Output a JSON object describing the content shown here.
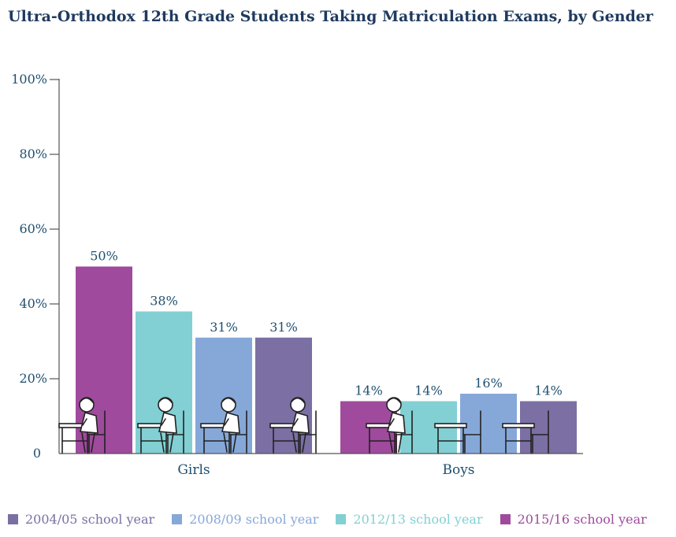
{
  "chart_data": {
    "type": "bar",
    "title": "Ultra-Orthodox 12th Grade Students Taking Matriculation Exams, by Gender",
    "categories": [
      "Girls",
      "Boys"
    ],
    "series": [
      {
        "name": "2015/16 school year",
        "color": "#9f4a9c",
        "values": [
          50,
          14
        ]
      },
      {
        "name": "2012/13 school year",
        "color": "#82d0d3",
        "values": [
          38,
          14
        ]
      },
      {
        "name": "2008/09 school year",
        "color": "#86a8d9",
        "values": [
          31,
          16
        ]
      },
      {
        "name": "2004/05 school year",
        "color": "#7b6fa4",
        "values": [
          31,
          14
        ]
      }
    ],
    "value_labels": [
      [
        "50%",
        "14%"
      ],
      [
        "38%",
        "14%"
      ],
      [
        "31%",
        "16%"
      ],
      [
        "31%",
        "14%"
      ]
    ],
    "yticks": [
      0,
      20,
      40,
      60,
      80,
      100
    ],
    "ytick_labels": [
      "0",
      "20%",
      "40%",
      "60%",
      "80%",
      "100%"
    ],
    "ylim": [
      0,
      100
    ],
    "grid": false,
    "legend_position": "bottom",
    "legend_order": [
      "2004/05 school year",
      "2008/09 school year",
      "2012/13 school year",
      "2015/16 school year"
    ],
    "decoration": "student-at-desk-illustrations"
  }
}
